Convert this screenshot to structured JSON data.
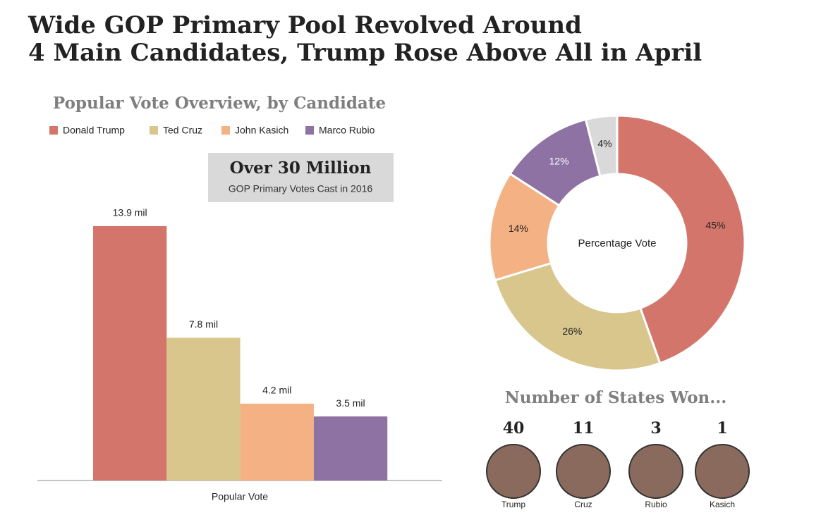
{
  "title": [
    "Wide GOP Primary Pool Revolved Around",
    "4 Main Candidates, Trump Rose Above All in April"
  ],
  "chart_data": [
    {
      "type": "bar",
      "title": "Popular Vote Overview, by Candidate",
      "categories": [
        "Popular Vote"
      ],
      "series": [
        {
          "name": "Donald Trump",
          "color": "#d4756b",
          "values": [
            13.9
          ],
          "value_labels": [
            "13.9 mil"
          ]
        },
        {
          "name": "Ted Cruz",
          "color": "#d9c68c",
          "values": [
            7.8
          ],
          "value_labels": [
            "7.8 mil"
          ]
        },
        {
          "name": "John Kasich",
          "color": "#f4b183",
          "values": [
            4.2
          ],
          "value_labels": [
            "4.2 mil"
          ]
        },
        {
          "name": "Marco Rubio",
          "color": "#8e72a4",
          "values": [
            3.5
          ],
          "value_labels": [
            "3.5  mil"
          ]
        }
      ],
      "annotation": {
        "headline": "Over 30 Million",
        "text": "GOP Primary Votes Cast in 2016"
      }
    },
    {
      "type": "pie",
      "center_label": "Percentage Vote",
      "values": [
        45,
        26,
        14,
        12,
        4
      ],
      "value_labels": [
        "45%",
        "26%",
        "14%",
        "12%",
        "4%"
      ],
      "colors": [
        "#d4756b",
        "#d9c68c",
        "#f4b183",
        "#8e72a4",
        "#d9d9d9"
      ]
    }
  ],
  "states_won": {
    "title": "Number of States Won...",
    "candidates": [
      {
        "count": "40",
        "name": "Trump"
      },
      {
        "count": "11",
        "name": "Cruz"
      },
      {
        "count": "3",
        "name": "Rubio"
      },
      {
        "count": "1",
        "name": "Kasich"
      }
    ]
  }
}
